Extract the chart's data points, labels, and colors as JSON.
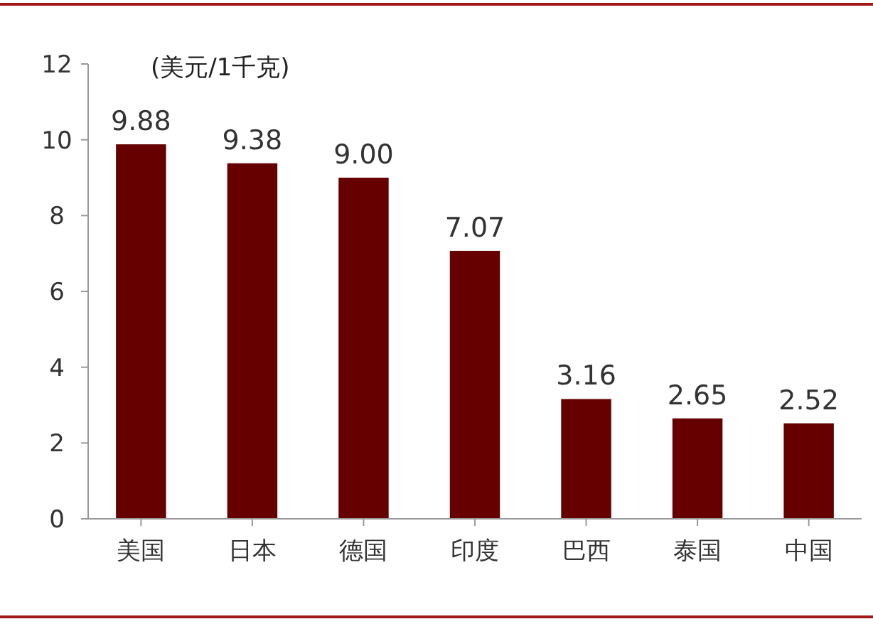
{
  "chart_data": {
    "type": "bar",
    "ylabel": "(美元/1千克)",
    "categories": [
      "美国",
      "日本",
      "德国",
      "印度",
      "巴西",
      "泰国",
      "中国"
    ],
    "values": [
      9.88,
      9.38,
      9.0,
      7.07,
      3.16,
      2.65,
      2.52
    ],
    "value_labels": [
      "9.88",
      "9.38",
      "9.00",
      "7.07",
      "3.16",
      "2.65",
      "2.52"
    ],
    "color": "#660000",
    "ylim": [
      0,
      12
    ],
    "yticks": [
      0,
      2,
      4,
      6,
      8,
      10,
      12
    ],
    "grid": false
  }
}
